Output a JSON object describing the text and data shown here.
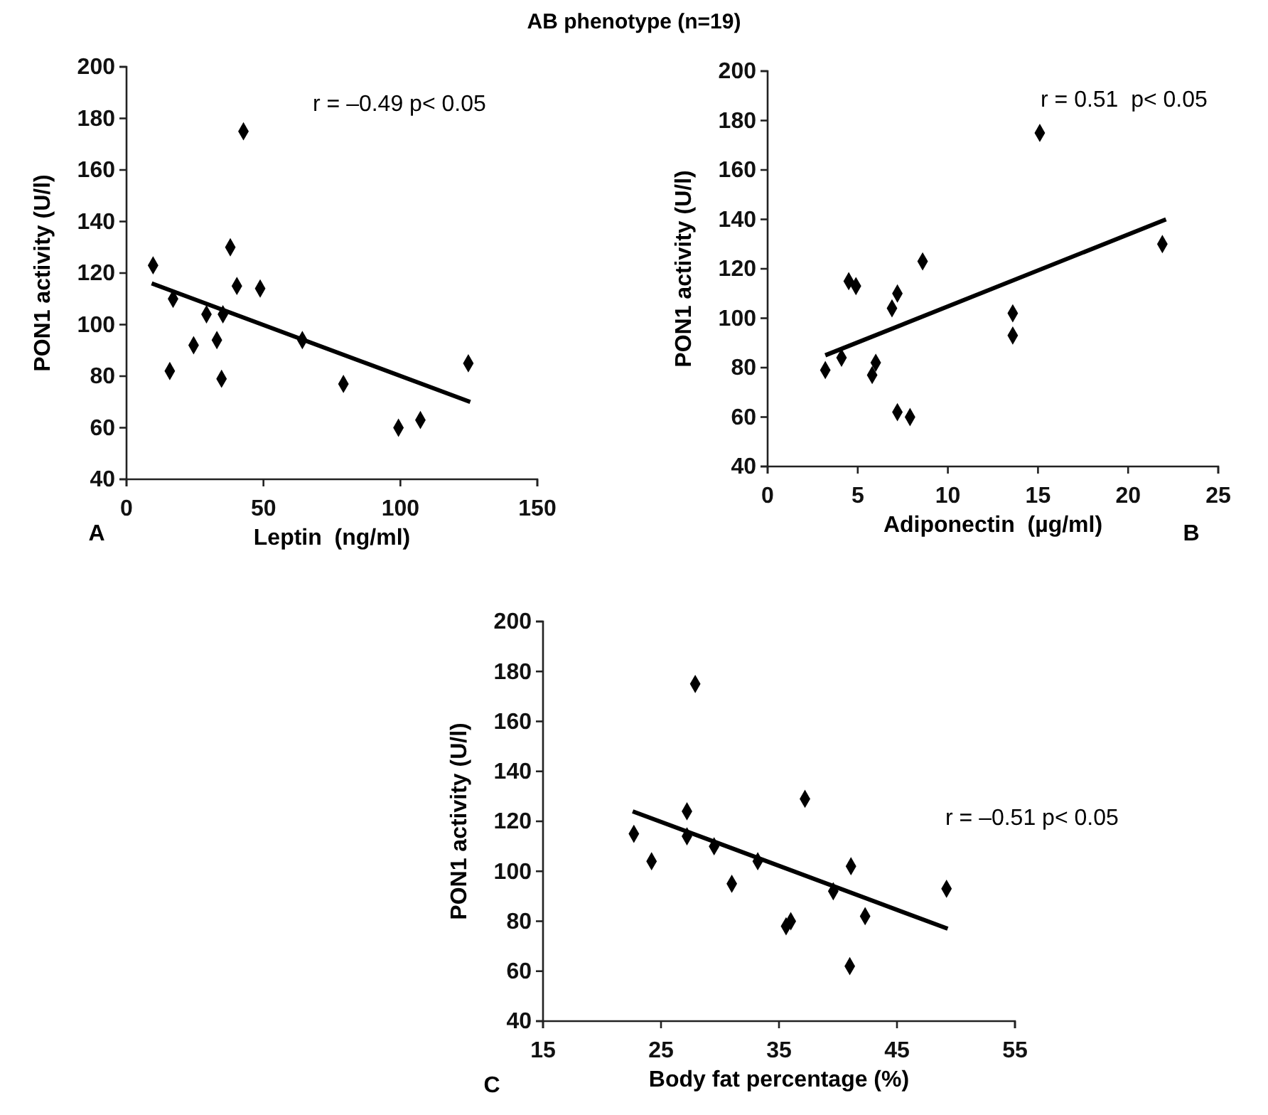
{
  "chart_data": [
    {
      "type": "scatter",
      "title": "AB phenotype (n=19)",
      "xlabel": "Leptin  (ng/ml)",
      "ylabel": "PON1 activity (U/l)",
      "xlim": [
        0,
        150
      ],
      "xticks": [
        0,
        50,
        100,
        150
      ],
      "ylim": [
        40,
        200
      ],
      "yticks": [
        40,
        60,
        80,
        100,
        120,
        140,
        160,
        180,
        200
      ],
      "annotations": [
        "r = –0.49 p< 0.05",
        "A"
      ],
      "series": [
        {
          "marker": "diamond",
          "color": "#000000",
          "x": [
            9.7,
            17.0,
            15.8,
            24.5,
            29.2,
            33.0,
            34.7,
            35.2,
            37.9,
            40.3,
            42.7,
            48.8,
            64.2,
            79.2,
            99.3,
            107.3,
            124.8
          ],
          "values": [
            123,
            110,
            82,
            92,
            104,
            94,
            79,
            104,
            130,
            115,
            175,
            114,
            94,
            77,
            60,
            63,
            85
          ]
        },
        {
          "type": "line",
          "color": "#000000",
          "x": [
            9.2,
            125.5
          ],
          "values": [
            116,
            70
          ]
        }
      ]
    },
    {
      "type": "scatter",
      "xlabel": "Adiponectin  (µg/ml)",
      "ylabel": "PON1 activity (U/l)",
      "xlim": [
        0,
        25
      ],
      "xticks": [
        0,
        5,
        10,
        15,
        20,
        25
      ],
      "ylim": [
        40,
        200
      ],
      "yticks": [
        40,
        60,
        80,
        100,
        120,
        140,
        160,
        180,
        200
      ],
      "annotations": [
        "r = 0.51  p< 0.05",
        "B"
      ],
      "series": [
        {
          "marker": "diamond",
          "color": "#000000",
          "x": [
            3.2,
            4.1,
            4.5,
            4.9,
            5.8,
            6.0,
            6.9,
            7.2,
            7.2,
            7.9,
            8.6,
            13.6,
            13.6,
            15.1,
            21.9
          ],
          "values": [
            79,
            84,
            115,
            113,
            77,
            82,
            104,
            110,
            62,
            60,
            123,
            102,
            93,
            175,
            130
          ]
        },
        {
          "type": "line",
          "color": "#000000",
          "x": [
            3.2,
            22.1
          ],
          "values": [
            85,
            140
          ]
        }
      ]
    },
    {
      "type": "scatter",
      "xlabel": "Body fat percentage (%)",
      "ylabel": "PON1 activity (U/l)",
      "xlim": [
        15,
        55
      ],
      "xticks": [
        15,
        25,
        35,
        45,
        55
      ],
      "ylim": [
        40,
        200
      ],
      "yticks": [
        40,
        60,
        80,
        100,
        120,
        140,
        160,
        180,
        200
      ],
      "annotations": [
        "r = –0.51 p< 0.05",
        "C"
      ],
      "series": [
        {
          "marker": "diamond",
          "color": "#000000",
          "x": [
            22.7,
            24.2,
            27.2,
            27.2,
            27.9,
            29.5,
            31.0,
            33.2,
            35.6,
            36.0,
            37.2,
            39.6,
            41.1,
            42.3,
            41.0,
            49.2
          ],
          "values": [
            115,
            104,
            124,
            114,
            175,
            110,
            95,
            104,
            78,
            80,
            129,
            92,
            102,
            82,
            62,
            93
          ]
        },
        {
          "type": "line",
          "color": "#000000",
          "x": [
            22.6,
            49.3
          ],
          "values": [
            124,
            77
          ]
        }
      ]
    }
  ]
}
